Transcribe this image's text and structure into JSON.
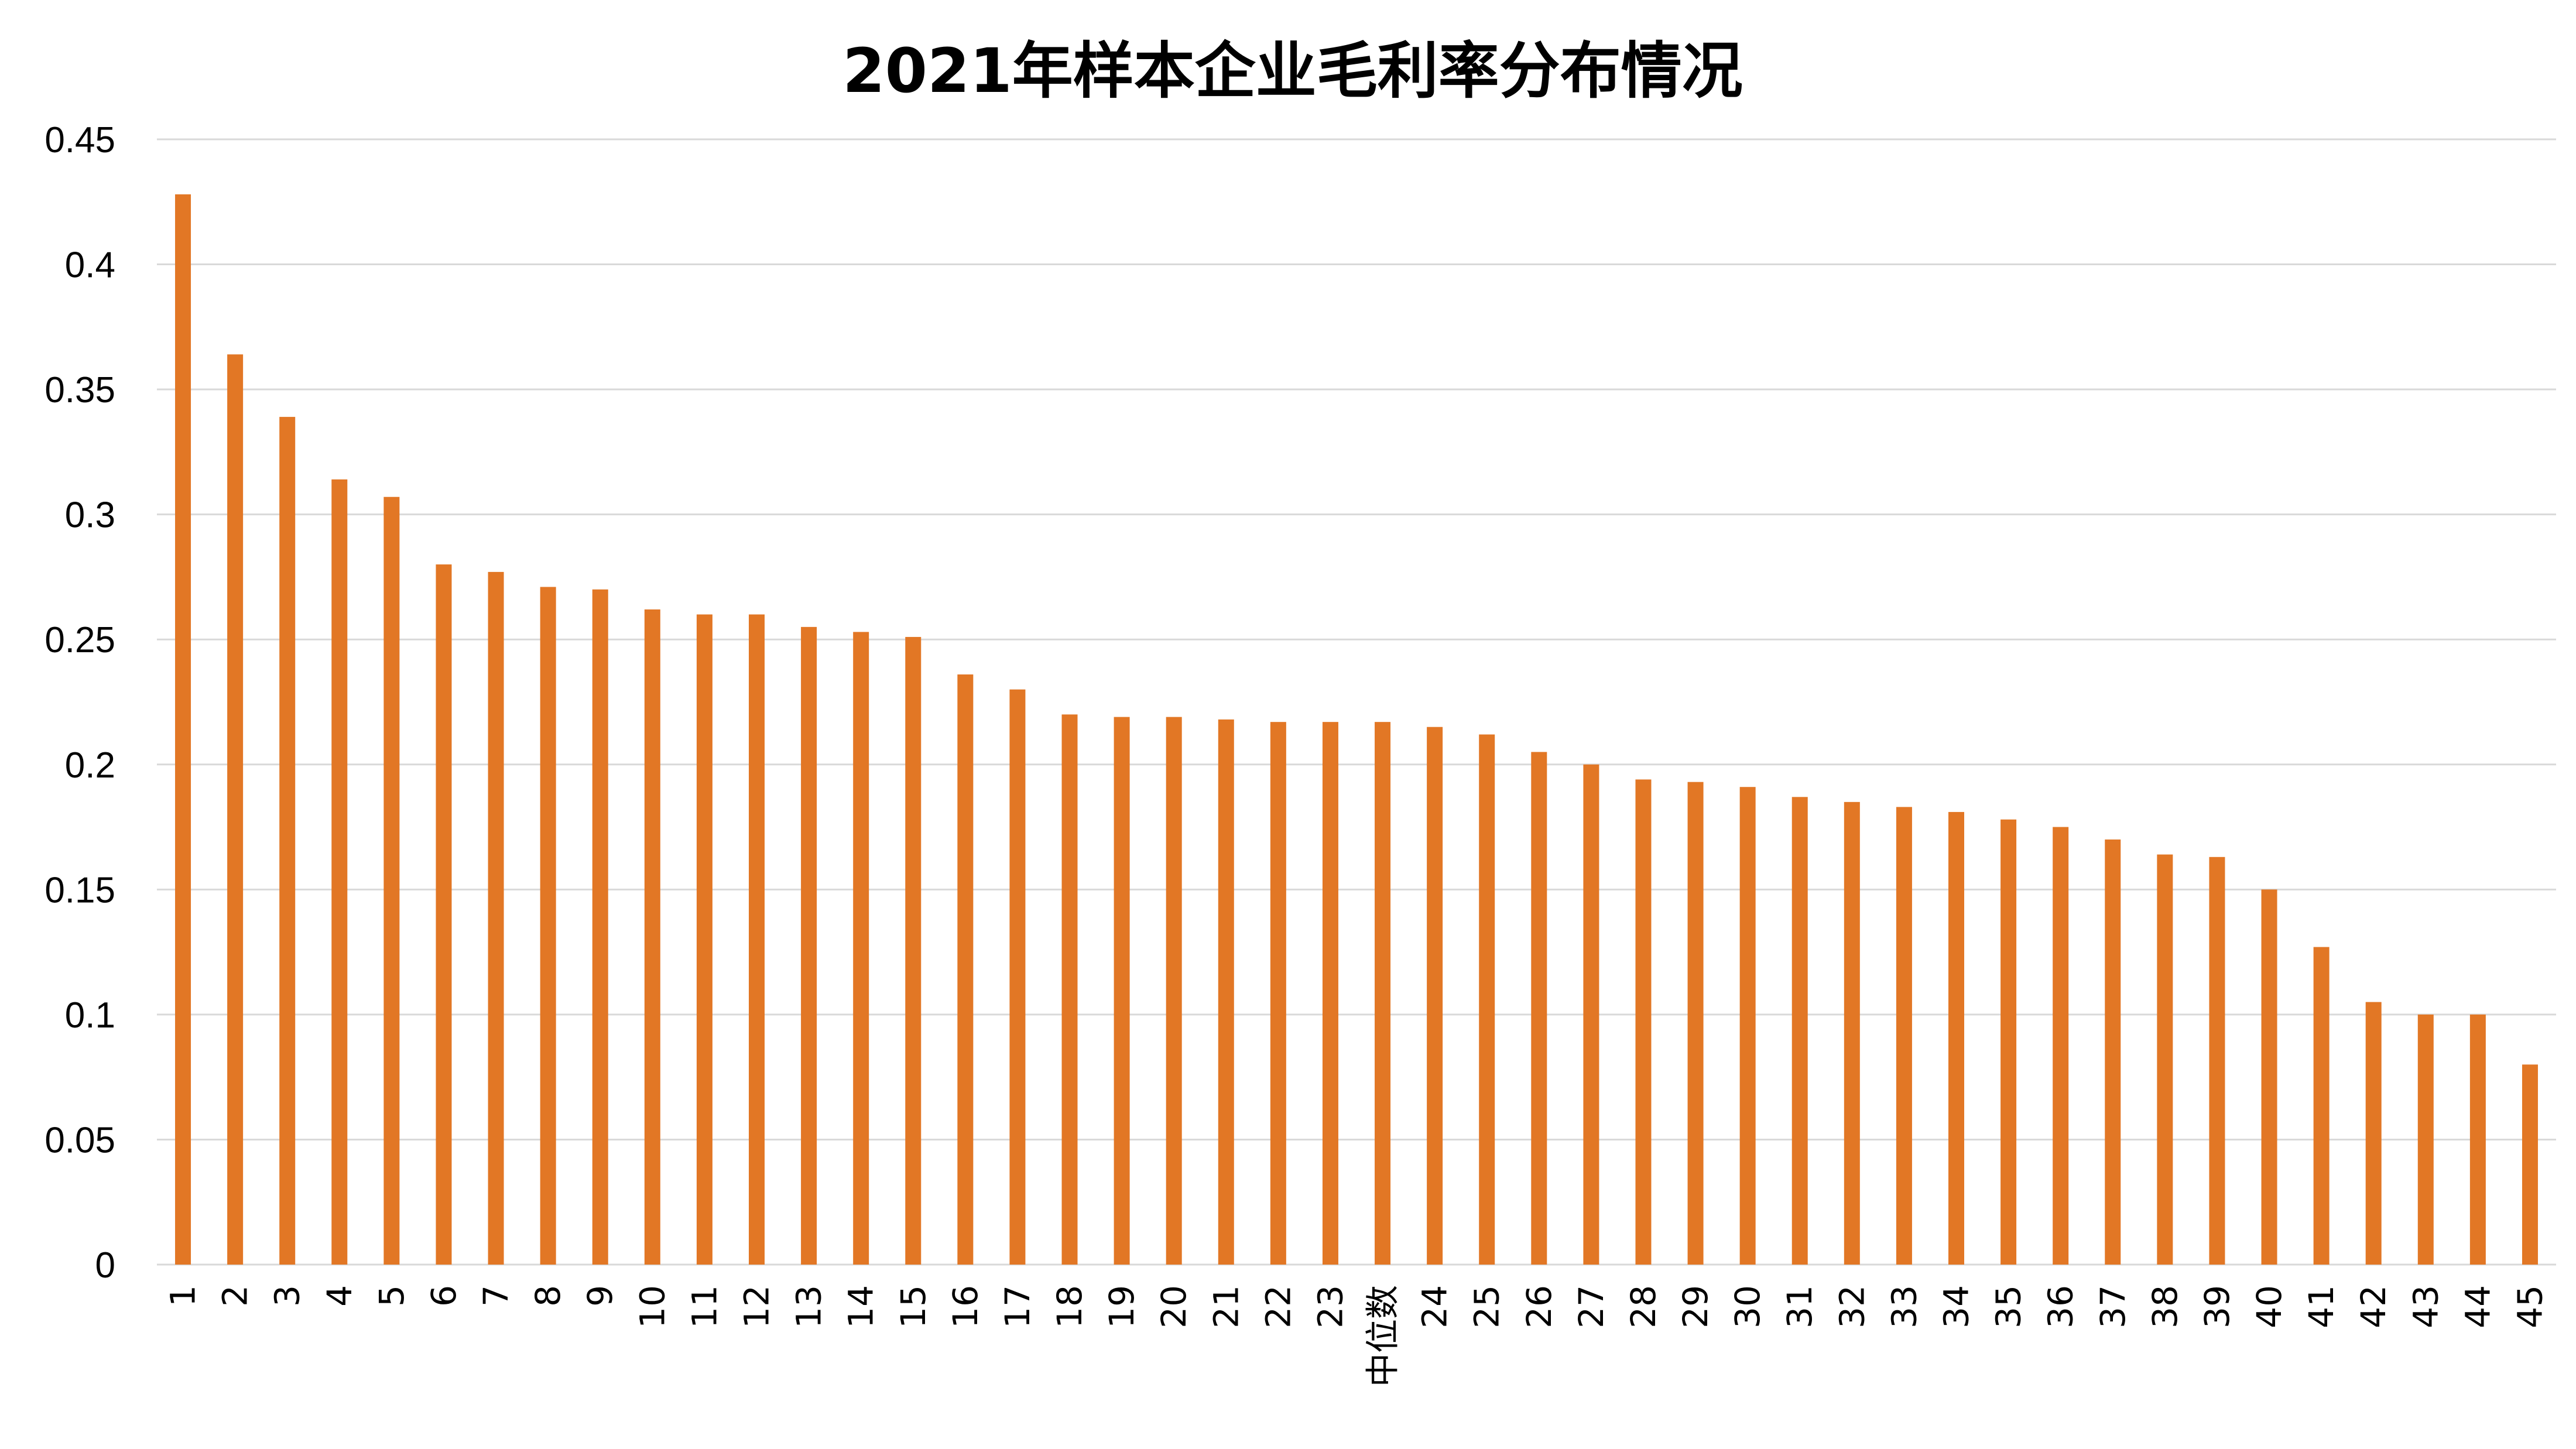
{
  "chart_data": {
    "type": "bar",
    "title": "2021年样本企业毛利率分布情况",
    "xlabel": "",
    "ylabel": "",
    "ylim": [
      0,
      0.45
    ],
    "yticks": [
      0,
      0.05,
      0.1,
      0.15,
      0.2,
      0.25,
      0.3,
      0.35,
      0.4,
      0.45
    ],
    "ytick_labels": [
      "0",
      "0.05",
      "0.1",
      "0.15",
      "0.2",
      "0.25",
      "0.3",
      "0.35",
      "0.4",
      "0.45"
    ],
    "grid": true,
    "legend": "none",
    "bar_color": "#E27725",
    "categories": [
      "1",
      "2",
      "3",
      "4",
      "5",
      "6",
      "7",
      "8",
      "9",
      "10",
      "11",
      "12",
      "13",
      "14",
      "15",
      "16",
      "17",
      "18",
      "19",
      "20",
      "21",
      "22",
      "23",
      "中位数",
      "24",
      "25",
      "26",
      "27",
      "28",
      "29",
      "30",
      "31",
      "32",
      "33",
      "34",
      "35",
      "36",
      "37",
      "38",
      "39",
      "40",
      "41",
      "42",
      "43",
      "44",
      "45"
    ],
    "values": [
      0.428,
      0.364,
      0.339,
      0.314,
      0.307,
      0.28,
      0.277,
      0.271,
      0.27,
      0.262,
      0.26,
      0.26,
      0.255,
      0.253,
      0.251,
      0.236,
      0.23,
      0.22,
      0.219,
      0.219,
      0.218,
      0.217,
      0.217,
      0.217,
      0.215,
      0.212,
      0.205,
      0.2,
      0.194,
      0.193,
      0.191,
      0.187,
      0.185,
      0.183,
      0.181,
      0.178,
      0.175,
      0.17,
      0.164,
      0.163,
      0.15,
      0.127,
      0.105,
      0.1,
      0.1,
      0.08
    ]
  }
}
